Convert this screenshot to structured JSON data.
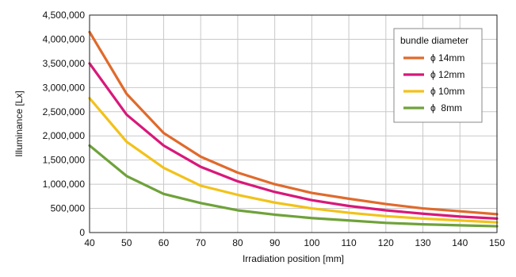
{
  "chart_data": {
    "type": "line",
    "title": "",
    "xlabel": "Irradiation position [mm]",
    "ylabel": "Illuminance [Lx]",
    "xlim": [
      40,
      150
    ],
    "ylim": [
      0,
      4500000
    ],
    "grid": true,
    "legend_title": "bundle diameter",
    "legend_position": "top-right",
    "x_ticks": [
      40,
      50,
      60,
      70,
      80,
      90,
      100,
      110,
      120,
      130,
      140,
      150
    ],
    "y_ticks": [
      "0",
      "500,000",
      "1,000,000",
      "1,500,000",
      "2,000,000",
      "2,500,000",
      "3,000,000",
      "3,500,000",
      "4,000,000",
      "4,500,000"
    ],
    "x": [
      40,
      50,
      60,
      70,
      80,
      90,
      100,
      110,
      120,
      130,
      140,
      150
    ],
    "series": [
      {
        "name": "ϕ 14mm",
        "color": "#e06a2c",
        "values": [
          4150000,
          2870000,
          2060000,
          1570000,
          1240000,
          1000000,
          820000,
          700000,
          590000,
          500000,
          440000,
          380000
        ]
      },
      {
        "name": "ϕ 12mm",
        "color": "#d8187a",
        "values": [
          3500000,
          2440000,
          1800000,
          1360000,
          1060000,
          840000,
          670000,
          550000,
          460000,
          390000,
          330000,
          290000
        ]
      },
      {
        "name": "ϕ 10mm",
        "color": "#f2c21a",
        "values": [
          2780000,
          1880000,
          1340000,
          970000,
          780000,
          620000,
          500000,
          410000,
          340000,
          290000,
          250000,
          210000
        ]
      },
      {
        "name": "ϕ  8mm",
        "color": "#6fa23a",
        "values": [
          1800000,
          1170000,
          800000,
          610000,
          460000,
          370000,
          300000,
          250000,
          200000,
          170000,
          150000,
          130000
        ]
      }
    ]
  }
}
